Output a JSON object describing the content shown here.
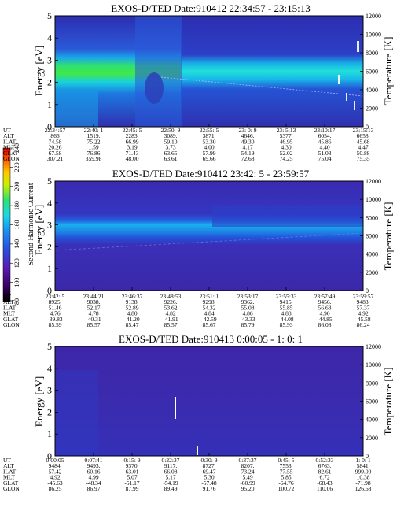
{
  "colorbar": {
    "label": "Second Harmonic Current",
    "ticks": [
      "80",
      "100",
      "120",
      "140",
      "160",
      "180",
      "200",
      "220",
      "240"
    ],
    "colors": [
      "#000000",
      "#3a0060",
      "#5a1cb4",
      "#2850e0",
      "#1a90f0",
      "#18d8e8",
      "#30e070",
      "#c8f000",
      "#ffc800",
      "#ff6000",
      "#e00000"
    ]
  },
  "chart_data": [
    {
      "type": "heatmap",
      "title": "EXOS-D/TED   Date:910412  22:34:57 - 23:15:13",
      "ylabel": "Energy [eV]",
      "y2label": "Temperature [K]",
      "ylim": [
        0,
        5
      ],
      "y2lim": [
        0,
        12000
      ],
      "yticks": [
        "0",
        "1",
        "2",
        "3",
        "4",
        "5"
      ],
      "y2ticks": [
        "0",
        "2000",
        "4000",
        "6000",
        "8000",
        "10000",
        "12000"
      ],
      "row_labels": [
        "UT",
        "ALT",
        "ILAT",
        "MLT",
        "GLAT",
        "GLON"
      ],
      "columns": [
        [
          "22:34:57",
          "866",
          "74.58",
          "20.26",
          "67.58",
          "307.21"
        ],
        [
          "22:40: 1",
          "1519.",
          "75.22",
          "1.59",
          "76.86",
          "359.98"
        ],
        [
          "22:45: 5",
          "2283.",
          "66.99",
          "3.19",
          "71.43",
          "48.00"
        ],
        [
          "22:50: 9",
          "3089.",
          "59.10",
          "3.73",
          "63.65",
          "63.61"
        ],
        [
          "22:55: 5",
          "3871.",
          "53.30",
          "4.00",
          "57.99",
          "69.66"
        ],
        [
          "23: 0: 9",
          "4646.",
          "49.30",
          "4.17",
          "54.19",
          "72.68"
        ],
        [
          "23: 5:13",
          "5377.",
          "46.95",
          "4.30",
          "52.02",
          "74.25"
        ],
        [
          "23:10:17",
          "6054.",
          "45.86",
          "4.40",
          "51.03",
          "75.04"
        ],
        [
          "23:15:13",
          "6658.",
          "45.68",
          "4.47",
          "50.88",
          "75.35"
        ]
      ]
    },
    {
      "type": "heatmap",
      "title": "EXOS-D/TED   Date:910412  23:42: 5 - 23:59:57",
      "ylabel": "Energy [eV]",
      "y2label": "Temperature [K]",
      "ylim": [
        0,
        5
      ],
      "y2lim": [
        0,
        12000
      ],
      "yticks": [
        "0",
        "1",
        "2",
        "3",
        "4",
        "5"
      ],
      "y2ticks": [
        "0",
        "2000",
        "4000",
        "6000",
        "8000",
        "10000",
        "12000"
      ],
      "row_labels": [
        "UT",
        "ALT",
        "ILAT",
        "MLT",
        "GLAT",
        "GLON"
      ],
      "columns": [
        [
          "23:42: 5",
          "8925.",
          "51.46",
          "4.76",
          "-39.83",
          "85.59"
        ],
        [
          "23:44:21",
          "9038.",
          "52.17",
          "4.78",
          "-40.31",
          "85.57"
        ],
        [
          "23:46:37",
          "9138.",
          "52.89",
          "4.80",
          "-41.20",
          "85.47"
        ],
        [
          "23:48:53",
          "9226.",
          "53.62",
          "4.82",
          "-41.91",
          "85.57"
        ],
        [
          "23:51: 1",
          "9298.",
          "54.32",
          "4.84",
          "-42.59",
          "85.67"
        ],
        [
          "23:53:17",
          "9362.",
          "55.08",
          "4.86",
          "-43.33",
          "85.79"
        ],
        [
          "23:55:33",
          "9415.",
          "55.85",
          "4.88",
          "-44.08",
          "85.93"
        ],
        [
          "23:57:49",
          "9456.",
          "56.63",
          "4.90",
          "-44.85",
          "86.08"
        ],
        [
          "23:59:57",
          "9483.",
          "57.37",
          "4.92",
          "-45.58",
          "86.24"
        ]
      ]
    },
    {
      "type": "heatmap",
      "title": "EXOS-D/TED   Date:910413   0:00:05 - 1: 0: 1",
      "ylabel": "Energy [eV]",
      "y2label": "Temperature [K]",
      "ylim": [
        0,
        5
      ],
      "y2lim": [
        0,
        12000
      ],
      "yticks": [
        "0",
        "1",
        "2",
        "3",
        "4",
        "5"
      ],
      "y2ticks": [
        "0",
        "2000",
        "4000",
        "6000",
        "8000",
        "10000",
        "12000"
      ],
      "row_labels": [
        "UT",
        "ALT",
        "ILAT",
        "MLT",
        "GLAT",
        "GLON"
      ],
      "columns": [
        [
          "0:00:05",
          "9484.",
          "57.42",
          "4.92",
          "-45.63",
          "86.25"
        ],
        [
          "0:07:41",
          "9493.",
          "60.16",
          "4.99",
          "-48.34",
          "86.97"
        ],
        [
          "0:15: 9",
          "9370.",
          "63.01",
          "5.07",
          "-51.17",
          "87.99"
        ],
        [
          "0:22:37",
          "9117.",
          "66.08",
          "5.17",
          "-54.19",
          "89.49"
        ],
        [
          "0:30: 9",
          "8727.",
          "69.47",
          "5.30",
          "-57.48",
          "91.76"
        ],
        [
          "0:37:37",
          "8207.",
          "73.24",
          "5.49",
          "-60.99",
          "95.20"
        ],
        [
          "0:45: 5",
          "7553.",
          "77.55",
          "5.85",
          "-64.76",
          "100.72"
        ],
        [
          "0:52:33",
          "6763.",
          "82.61",
          "6.72",
          "-68.43",
          "110.06"
        ],
        [
          "1: 0: 1",
          "5841.",
          "999.00",
          "10.38",
          "-71.98",
          "126.68"
        ]
      ]
    }
  ]
}
